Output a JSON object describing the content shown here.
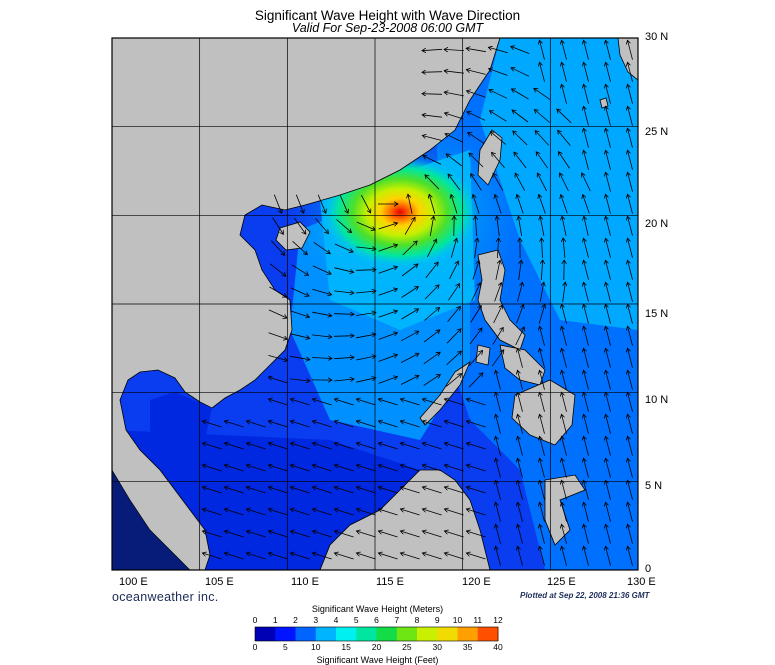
{
  "title": "Significant Wave Height with Wave Direction",
  "subtitle": "Valid For Sep-23-2008 06:00 GMT",
  "longitude_labels": [
    "100 E",
    "105 E",
    "110 E",
    "115 E",
    "120 E",
    "125 E",
    "130 E"
  ],
  "latitude_labels": [
    "30 N",
    "25 N",
    "20 N",
    "15 N",
    "10 N",
    "5 N",
    "0"
  ],
  "brand": "oceanweather inc.",
  "plotted_at": "Plotted at Sep 22, 2008 21:36 GMT",
  "colorbar": {
    "title_meters": "Significant Wave Height (Meters)",
    "ticks_meters": [
      "0",
      "1",
      "2",
      "3",
      "4",
      "5",
      "6",
      "7",
      "8",
      "9",
      "10",
      "11",
      "12"
    ],
    "ticks_feet": [
      "0",
      "5",
      "10",
      "15",
      "20",
      "25",
      "30",
      "35",
      "40"
    ],
    "title_feet": "Significant Wave Height (Feet)",
    "colors": [
      "#0000b4",
      "#0014ff",
      "#0064ff",
      "#00b4ff",
      "#00f0f0",
      "#00e6a0",
      "#14dc46",
      "#6ee614",
      "#c8f000",
      "#f0dc00",
      "#ffa000",
      "#ff5000",
      "#e60000"
    ]
  },
  "map_extent": {
    "lon_min": 100,
    "lon_max": 130,
    "lat_min": 0,
    "lat_max": 30
  },
  "storm_peak": {
    "lon": 115.8,
    "lat": 20.8,
    "height_m": 11.5
  }
}
